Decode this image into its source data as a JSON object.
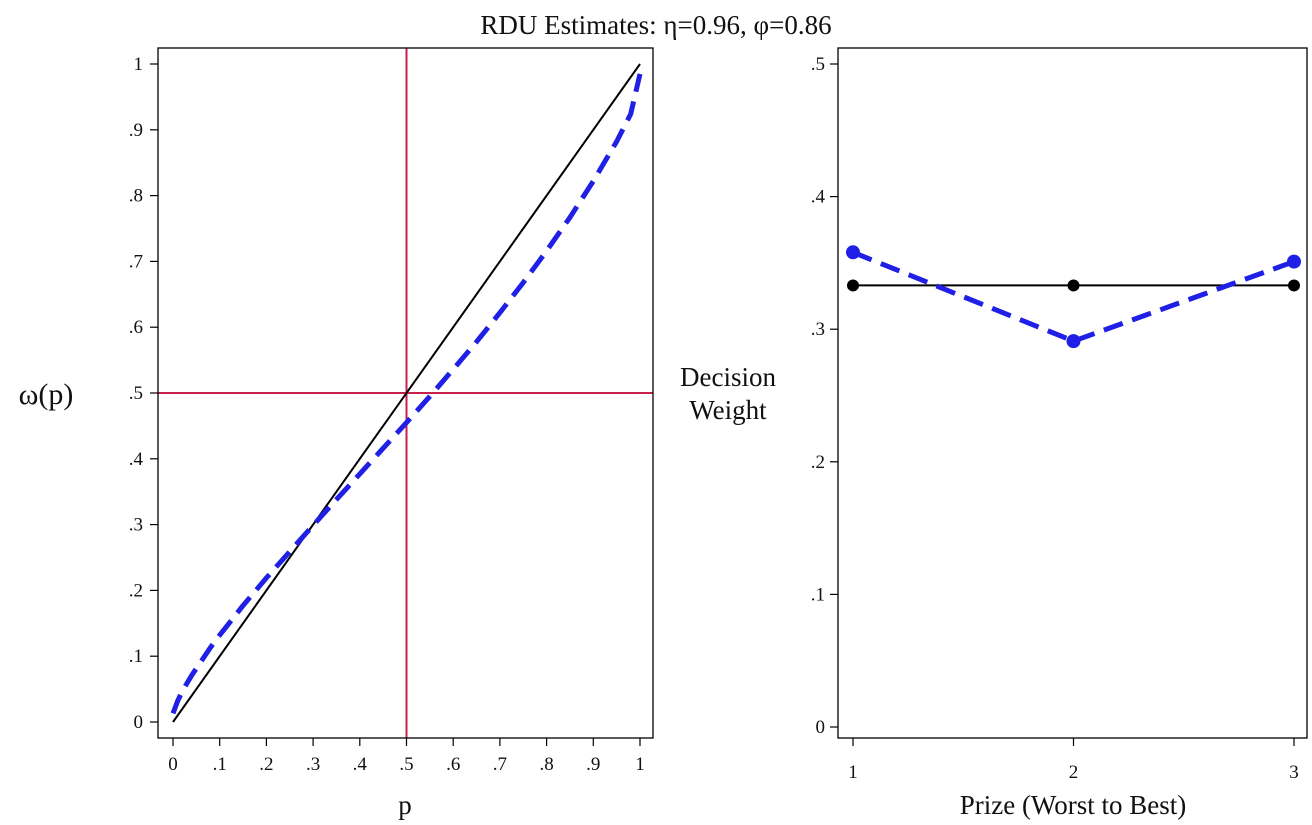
{
  "title": "RDU Estimates: η=0.96,  φ=0.86",
  "colors": {
    "reference": "#000000",
    "estimate": "#1f1fe6",
    "guides": "#c8204a"
  },
  "chart_data": [
    {
      "type": "line",
      "xlabel": "p",
      "ylabel": "ω(p)",
      "xlim": [
        0,
        1
      ],
      "ylim": [
        0,
        1
      ],
      "xticks": [
        {
          "v": 0,
          "label": "0"
        },
        {
          "v": 0.1,
          "label": ".1"
        },
        {
          "v": 0.2,
          "label": ".2"
        },
        {
          "v": 0.3,
          "label": ".3"
        },
        {
          "v": 0.4,
          "label": ".4"
        },
        {
          "v": 0.5,
          "label": ".5"
        },
        {
          "v": 0.6,
          "label": ".6"
        },
        {
          "v": 0.7,
          "label": ".7"
        },
        {
          "v": 0.8,
          "label": ".8"
        },
        {
          "v": 0.9,
          "label": ".9"
        },
        {
          "v": 1,
          "label": "1"
        }
      ],
      "yticks": [
        {
          "v": 0,
          "label": "0"
        },
        {
          "v": 0.1,
          "label": ".1"
        },
        {
          "v": 0.2,
          "label": ".2"
        },
        {
          "v": 0.3,
          "label": ".3"
        },
        {
          "v": 0.4,
          "label": ".4"
        },
        {
          "v": 0.5,
          "label": ".5"
        },
        {
          "v": 0.6,
          "label": ".6"
        },
        {
          "v": 0.7,
          "label": ".7"
        },
        {
          "v": 0.8,
          "label": ".8"
        },
        {
          "v": 0.9,
          "label": ".9"
        },
        {
          "v": 1,
          "label": "1"
        }
      ],
      "reference_lines": {
        "x": 0.5,
        "y": 0.5
      },
      "series": [
        {
          "style": "solid",
          "color": "#000000",
          "x": [
            0,
            1
          ],
          "y": [
            0,
            1
          ]
        },
        {
          "style": "dashed",
          "color": "#1f1fe6",
          "x": [
            0,
            0.01,
            0.02,
            0.04,
            0.06,
            0.08,
            0.1,
            0.15,
            0.2,
            0.25,
            0.3,
            0.35,
            0.4,
            0.45,
            0.5,
            0.55,
            0.6,
            0.65,
            0.7,
            0.75,
            0.8,
            0.85,
            0.9,
            0.95,
            0.98,
            1
          ],
          "y": [
            0.013,
            0.032,
            0.047,
            0.071,
            0.092,
            0.113,
            0.132,
            0.177,
            0.219,
            0.259,
            0.299,
            0.338,
            0.377,
            0.416,
            0.455,
            0.495,
            0.536,
            0.578,
            0.622,
            0.668,
            0.716,
            0.767,
            0.822,
            0.882,
            0.924,
            0.985
          ]
        }
      ]
    },
    {
      "type": "line",
      "xlabel": "Prize (Worst to Best)",
      "ylabel": "Decision Weight",
      "categories": [
        "1",
        "2",
        "3"
      ],
      "xlim": [
        1,
        3
      ],
      "ylim": [
        0,
        0.5
      ],
      "yticks": [
        {
          "v": 0,
          "label": "0"
        },
        {
          "v": 0.1,
          "label": ".1"
        },
        {
          "v": 0.2,
          "label": ".2"
        },
        {
          "v": 0.3,
          "label": ".3"
        },
        {
          "v": 0.4,
          "label": ".4"
        },
        {
          "v": 0.5,
          "label": ".5"
        }
      ],
      "series": [
        {
          "style": "solid",
          "color": "#000000",
          "x": [
            1,
            2,
            3
          ],
          "values": [
            0.333,
            0.333,
            0.333
          ]
        },
        {
          "style": "dashed",
          "color": "#1f1fe6",
          "x": [
            1,
            2,
            3
          ],
          "values": [
            0.358,
            0.291,
            0.351
          ]
        }
      ]
    }
  ]
}
